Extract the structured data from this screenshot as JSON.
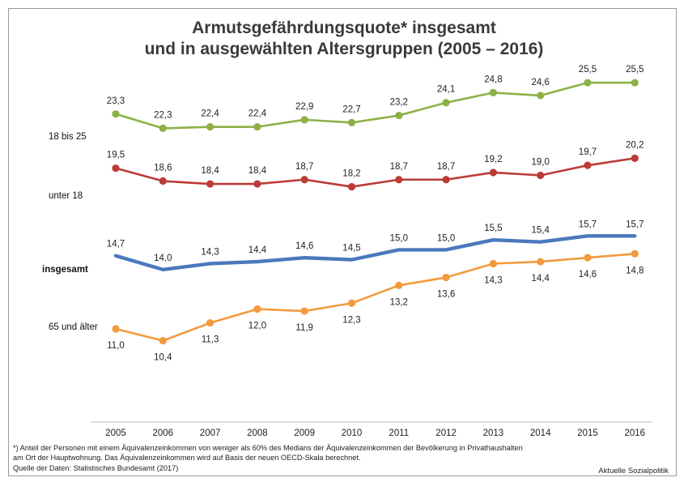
{
  "chart_data": {
    "type": "line",
    "title_line1": "Armutsgefährdungsquote* insgesamt",
    "title_line2": "und in ausgewählten Altersgruppen (2005 – 2016)",
    "x": [
      "2005",
      "2006",
      "2007",
      "2008",
      "2009",
      "2010",
      "2011",
      "2012",
      "2013",
      "2014",
      "2015",
      "2016"
    ],
    "series": [
      {
        "name": "18 bis 25",
        "color": "#8db146",
        "values": [
          23.3,
          22.3,
          22.4,
          22.4,
          22.9,
          22.7,
          23.2,
          24.1,
          24.8,
          24.6,
          25.5,
          25.5
        ],
        "labels": [
          "23,3",
          "22,3",
          "22,4",
          "22,4",
          "22,9",
          "22,7",
          "23,2",
          "24,1",
          "24,8",
          "24,6",
          "25,5",
          "25,5"
        ],
        "label_pos": "above",
        "markers": true
      },
      {
        "name": "unter 18",
        "color": "#bb3b36",
        "values": [
          19.5,
          18.6,
          18.4,
          18.4,
          18.7,
          18.2,
          18.7,
          18.7,
          19.2,
          19.0,
          19.7,
          20.2
        ],
        "labels": [
          "19,5",
          "18,6",
          "18,4",
          "18,4",
          "18,7",
          "18,2",
          "18,7",
          "18,7",
          "19,2",
          "19,0",
          "19,7",
          "20,2"
        ],
        "label_pos": "above",
        "markers": true
      },
      {
        "name": "insgesamt",
        "color": "#4a78bd",
        "values": [
          14.7,
          14.0,
          14.3,
          14.4,
          14.6,
          14.5,
          15.0,
          15.0,
          15.5,
          15.4,
          15.7,
          15.7
        ],
        "labels": [
          "14,7",
          "14,0",
          "14,3",
          "14,4",
          "14,6",
          "14,5",
          "15,0",
          "15,0",
          "15,5",
          "15,4",
          "15,7",
          "15,7"
        ],
        "label_pos": "above",
        "markers": false,
        "bold_name": true
      },
      {
        "name": "65 und älter",
        "color": "#f39a3d",
        "values": [
          11.0,
          10.4,
          11.3,
          12.0,
          11.9,
          12.3,
          13.2,
          13.6,
          14.3,
          14.4,
          14.6,
          14.8
        ],
        "labels": [
          "11,0",
          "10,4",
          "11,3",
          "12,0",
          "11,9",
          "12,3",
          "13,2",
          "13,6",
          "14,3",
          "14,4",
          "14,6",
          "14,8"
        ],
        "label_pos": "below",
        "markers": true
      }
    ],
    "grid": false,
    "legend": "left"
  },
  "footnote_line1": "*) Anteil der Personen mit einem Äquivalenzeinkommen von weniger als 60% des Medians der Äquivalenzeinkommen der Bevölkerung in Privathaushalten",
  "footnote_line2": "am Ort der Hauptwohnung. Das Äquivalenzeinkommen wird auf Basis der neuen OECD-Skala berechnet.",
  "source": "Quelle der Daten: Statistisches Bundesamt (2017)",
  "brand": "Aktuelle Sozialpolitik"
}
